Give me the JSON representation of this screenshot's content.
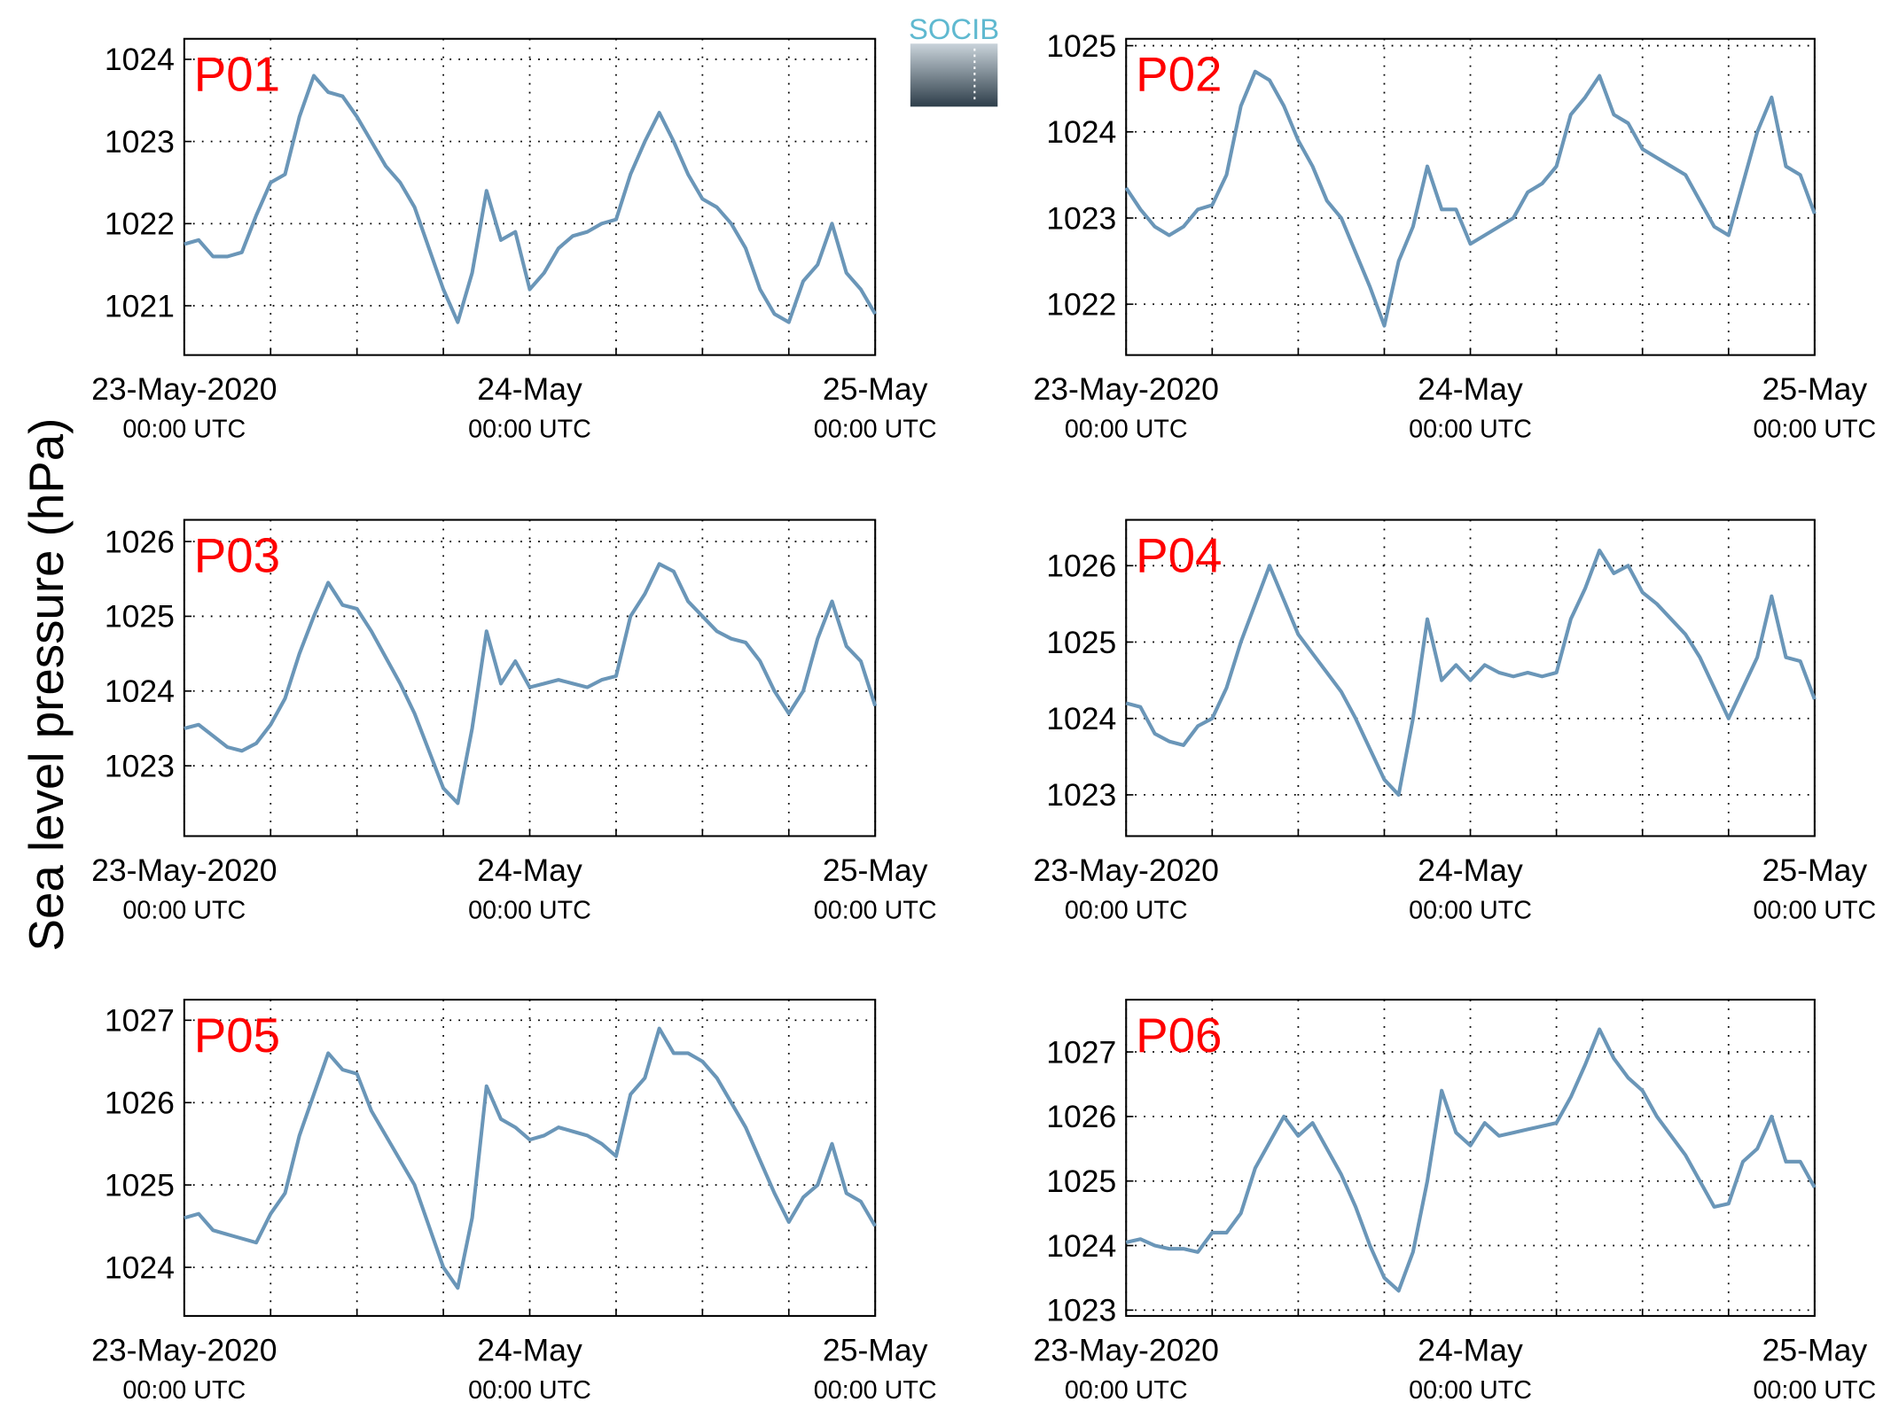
{
  "ylabel": "Sea level pressure (hPa)",
  "logo": "SOCIB",
  "chart_data": [
    {
      "type": "line",
      "title": "P01",
      "color": "#6a96b8",
      "grid": true,
      "x": [
        0,
        1,
        2,
        3,
        4,
        5,
        6,
        7,
        8,
        9,
        10,
        11,
        12,
        13,
        14,
        15,
        16,
        17,
        18,
        19,
        20,
        21,
        22,
        23,
        24,
        25,
        26,
        27,
        28,
        29,
        30,
        31,
        32,
        33,
        34,
        35,
        36,
        37,
        38,
        39,
        40,
        41,
        42,
        43,
        44,
        45,
        46,
        47,
        48
      ],
      "values": [
        1021.75,
        1021.8,
        1021.6,
        1021.6,
        1021.65,
        1022.1,
        1022.5,
        1022.6,
        1023.3,
        1023.8,
        1023.6,
        1023.55,
        1023.3,
        1023.0,
        1022.7,
        1022.5,
        1022.2,
        1021.7,
        1021.2,
        1020.8,
        1021.4,
        1022.4,
        1021.8,
        1021.9,
        1021.2,
        1021.4,
        1021.7,
        1021.85,
        1021.9,
        1022.0,
        1022.05,
        1022.6,
        1023.0,
        1023.35,
        1023.0,
        1022.6,
        1022.3,
        1022.2,
        1022.0,
        1021.7,
        1021.2,
        1020.9,
        1020.8,
        1021.3,
        1021.5,
        1022.0,
        1021.4,
        1021.2,
        1020.9
      ],
      "xlim": [
        0,
        48
      ],
      "xticks": [
        {
          "value": 0,
          "label": [
            "23-May-2020",
            "00:00 UTC"
          ]
        },
        {
          "value": 6,
          "label": null
        },
        {
          "value": 12,
          "label": null
        },
        {
          "value": 18,
          "label": null
        },
        {
          "value": 24,
          "label": [
            "24-May",
            "00:00 UTC"
          ]
        },
        {
          "value": 30,
          "label": null
        },
        {
          "value": 36,
          "label": null
        },
        {
          "value": 42,
          "label": null
        },
        {
          "value": 48,
          "label": [
            "25-May",
            "00:00 UTC"
          ]
        }
      ],
      "ylim": [
        1020.4,
        1024.25
      ],
      "yticks": [
        1021,
        1022,
        1023,
        1024
      ]
    },
    {
      "type": "line",
      "title": "P02",
      "color": "#6a96b8",
      "grid": true,
      "x": [
        0,
        1,
        2,
        3,
        4,
        5,
        6,
        7,
        8,
        9,
        10,
        11,
        12,
        13,
        14,
        15,
        16,
        17,
        18,
        19,
        20,
        21,
        22,
        23,
        24,
        25,
        26,
        27,
        28,
        29,
        30,
        31,
        32,
        33,
        34,
        35,
        36,
        37,
        38,
        39,
        40,
        41,
        42,
        43,
        44,
        45,
        46,
        47,
        48
      ],
      "values": [
        1023.35,
        1023.1,
        1022.9,
        1022.8,
        1022.9,
        1023.1,
        1023.15,
        1023.5,
        1024.3,
        1024.7,
        1024.6,
        1024.3,
        1023.9,
        1023.6,
        1023.2,
        1023.0,
        1022.6,
        1022.2,
        1021.75,
        1022.5,
        1022.9,
        1023.6,
        1023.1,
        1023.1,
        1022.7,
        1022.8,
        1022.9,
        1023.0,
        1023.3,
        1023.4,
        1023.6,
        1024.2,
        1024.4,
        1024.65,
        1024.2,
        1024.1,
        1023.8,
        1023.7,
        1023.6,
        1023.5,
        1023.2,
        1022.9,
        1022.8,
        1023.4,
        1024.0,
        1024.4,
        1023.6,
        1023.5,
        1023.05
      ],
      "xlim": [
        0,
        48
      ],
      "xticks": [
        {
          "value": 0,
          "label": [
            "23-May-2020",
            "00:00 UTC"
          ]
        },
        {
          "value": 6,
          "label": null
        },
        {
          "value": 12,
          "label": null
        },
        {
          "value": 18,
          "label": null
        },
        {
          "value": 24,
          "label": [
            "24-May",
            "00:00 UTC"
          ]
        },
        {
          "value": 30,
          "label": null
        },
        {
          "value": 36,
          "label": null
        },
        {
          "value": 42,
          "label": null
        },
        {
          "value": 48,
          "label": [
            "25-May",
            "00:00 UTC"
          ]
        }
      ],
      "ylim": [
        1021.41,
        1025.08
      ],
      "yticks": [
        1022,
        1023,
        1024,
        1025
      ]
    },
    {
      "type": "line",
      "title": "P03",
      "color": "#6a96b8",
      "grid": true,
      "x": [
        0,
        1,
        2,
        3,
        4,
        5,
        6,
        7,
        8,
        9,
        10,
        11,
        12,
        13,
        14,
        15,
        16,
        17,
        18,
        19,
        20,
        21,
        22,
        23,
        24,
        25,
        26,
        27,
        28,
        29,
        30,
        31,
        32,
        33,
        34,
        35,
        36,
        37,
        38,
        39,
        40,
        41,
        42,
        43,
        44,
        45,
        46,
        47,
        48
      ],
      "values": [
        1023.5,
        1023.55,
        1023.4,
        1023.25,
        1023.2,
        1023.3,
        1023.55,
        1023.9,
        1024.5,
        1025.0,
        1025.45,
        1025.15,
        1025.1,
        1024.8,
        1024.45,
        1024.1,
        1023.7,
        1023.2,
        1022.7,
        1022.5,
        1023.5,
        1024.8,
        1024.1,
        1024.4,
        1024.05,
        1024.1,
        1024.15,
        1024.1,
        1024.05,
        1024.15,
        1024.2,
        1025.0,
        1025.3,
        1025.7,
        1025.6,
        1025.2,
        1025.0,
        1024.8,
        1024.7,
        1024.65,
        1024.4,
        1024.0,
        1023.7,
        1024.0,
        1024.7,
        1025.2,
        1024.6,
        1024.4,
        1023.8
      ],
      "xlim": [
        0,
        48
      ],
      "xticks": [
        {
          "value": 0,
          "label": [
            "23-May-2020",
            "00:00 UTC"
          ]
        },
        {
          "value": 6,
          "label": null
        },
        {
          "value": 12,
          "label": null
        },
        {
          "value": 18,
          "label": null
        },
        {
          "value": 24,
          "label": [
            "24-May",
            "00:00 UTC"
          ]
        },
        {
          "value": 30,
          "label": null
        },
        {
          "value": 36,
          "label": null
        },
        {
          "value": 42,
          "label": null
        },
        {
          "value": 48,
          "label": [
            "25-May",
            "00:00 UTC"
          ]
        }
      ],
      "ylim": [
        1022.06,
        1026.29
      ],
      "yticks": [
        1023,
        1024,
        1025,
        1026
      ]
    },
    {
      "type": "line",
      "title": "P04",
      "color": "#6a96b8",
      "grid": true,
      "x": [
        0,
        1,
        2,
        3,
        4,
        5,
        6,
        7,
        8,
        9,
        10,
        11,
        12,
        13,
        14,
        15,
        16,
        17,
        18,
        19,
        20,
        21,
        22,
        23,
        24,
        25,
        26,
        27,
        28,
        29,
        30,
        31,
        32,
        33,
        34,
        35,
        36,
        37,
        38,
        39,
        40,
        41,
        42,
        43,
        44,
        45,
        46,
        47,
        48
      ],
      "values": [
        1024.2,
        1024.15,
        1023.8,
        1023.7,
        1023.65,
        1023.9,
        1024.0,
        1024.4,
        1025.0,
        1025.5,
        1026.0,
        1025.55,
        1025.1,
        1024.85,
        1024.6,
        1024.35,
        1024.0,
        1023.6,
        1023.2,
        1023.0,
        1024.0,
        1025.3,
        1024.5,
        1024.7,
        1024.5,
        1024.7,
        1024.6,
        1024.55,
        1024.6,
        1024.55,
        1024.6,
        1025.3,
        1025.7,
        1026.2,
        1025.9,
        1026.0,
        1025.65,
        1025.5,
        1025.3,
        1025.1,
        1024.8,
        1024.4,
        1024.0,
        1024.4,
        1024.8,
        1025.6,
        1024.8,
        1024.75,
        1024.25
      ],
      "xlim": [
        0,
        48
      ],
      "xticks": [
        {
          "value": 0,
          "label": [
            "23-May-2020",
            "00:00 UTC"
          ]
        },
        {
          "value": 6,
          "label": null
        },
        {
          "value": 12,
          "label": null
        },
        {
          "value": 18,
          "label": null
        },
        {
          "value": 24,
          "label": [
            "24-May",
            "00:00 UTC"
          ]
        },
        {
          "value": 30,
          "label": null
        },
        {
          "value": 36,
          "label": null
        },
        {
          "value": 42,
          "label": null
        },
        {
          "value": 48,
          "label": [
            "25-May",
            "00:00 UTC"
          ]
        }
      ],
      "ylim": [
        1022.46,
        1026.6
      ],
      "yticks": [
        1023,
        1024,
        1025,
        1026
      ]
    },
    {
      "type": "line",
      "title": "P05",
      "color": "#6a96b8",
      "grid": true,
      "x": [
        0,
        1,
        2,
        3,
        4,
        5,
        6,
        7,
        8,
        9,
        10,
        11,
        12,
        13,
        14,
        15,
        16,
        17,
        18,
        19,
        20,
        21,
        22,
        23,
        24,
        25,
        26,
        27,
        28,
        29,
        30,
        31,
        32,
        33,
        34,
        35,
        36,
        37,
        38,
        39,
        40,
        41,
        42,
        43,
        44,
        45,
        46,
        47,
        48
      ],
      "values": [
        1024.6,
        1024.65,
        1024.45,
        1024.4,
        1024.35,
        1024.3,
        1024.65,
        1024.9,
        1025.6,
        1026.1,
        1026.6,
        1026.4,
        1026.35,
        1025.9,
        1025.6,
        1025.3,
        1025.0,
        1024.5,
        1024.0,
        1023.75,
        1024.6,
        1026.2,
        1025.8,
        1025.7,
        1025.55,
        1025.6,
        1025.7,
        1025.65,
        1025.6,
        1025.5,
        1025.35,
        1026.1,
        1026.3,
        1026.9,
        1026.6,
        1026.6,
        1026.5,
        1026.3,
        1026.0,
        1025.7,
        1025.3,
        1024.9,
        1024.55,
        1024.85,
        1025.0,
        1025.5,
        1024.9,
        1024.8,
        1024.5
      ],
      "xlim": [
        0,
        48
      ],
      "xticks": [
        {
          "value": 0,
          "label": [
            "23-May-2020",
            "00:00 UTC"
          ]
        },
        {
          "value": 6,
          "label": null
        },
        {
          "value": 12,
          "label": null
        },
        {
          "value": 18,
          "label": null
        },
        {
          "value": 24,
          "label": [
            "24-May",
            "00:00 UTC"
          ]
        },
        {
          "value": 30,
          "label": null
        },
        {
          "value": 36,
          "label": null
        },
        {
          "value": 42,
          "label": null
        },
        {
          "value": 48,
          "label": [
            "25-May",
            "00:00 UTC"
          ]
        }
      ],
      "ylim": [
        1023.41,
        1027.25
      ],
      "yticks": [
        1024,
        1025,
        1026,
        1027
      ]
    },
    {
      "type": "line",
      "title": "P06",
      "color": "#6a96b8",
      "grid": true,
      "x": [
        0,
        1,
        2,
        3,
        4,
        5,
        6,
        7,
        8,
        9,
        10,
        11,
        12,
        13,
        14,
        15,
        16,
        17,
        18,
        19,
        20,
        21,
        22,
        23,
        24,
        25,
        26,
        27,
        28,
        29,
        30,
        31,
        32,
        33,
        34,
        35,
        36,
        37,
        38,
        39,
        40,
        41,
        42,
        43,
        44,
        45,
        46,
        47,
        48
      ],
      "values": [
        1024.05,
        1024.1,
        1024.0,
        1023.95,
        1023.95,
        1023.9,
        1024.2,
        1024.2,
        1024.5,
        1025.2,
        1025.6,
        1026.0,
        1025.7,
        1025.9,
        1025.5,
        1025.1,
        1024.6,
        1024.0,
        1023.5,
        1023.3,
        1023.9,
        1025.0,
        1026.4,
        1025.75,
        1025.55,
        1025.9,
        1025.7,
        1025.75,
        1025.8,
        1025.85,
        1025.9,
        1026.3,
        1026.8,
        1027.35,
        1026.9,
        1026.6,
        1026.4,
        1026.0,
        1025.7,
        1025.4,
        1025.0,
        1024.6,
        1024.65,
        1025.3,
        1025.5,
        1026.0,
        1025.3,
        1025.3,
        1024.9
      ],
      "xlim": [
        0,
        48
      ],
      "xticks": [
        {
          "value": 0,
          "label": [
            "23-May-2020",
            "00:00 UTC"
          ]
        },
        {
          "value": 6,
          "label": null
        },
        {
          "value": 12,
          "label": null
        },
        {
          "value": 18,
          "label": null
        },
        {
          "value": 24,
          "label": [
            "24-May",
            "00:00 UTC"
          ]
        },
        {
          "value": 30,
          "label": null
        },
        {
          "value": 36,
          "label": null
        },
        {
          "value": 42,
          "label": null
        },
        {
          "value": 48,
          "label": [
            "25-May",
            "00:00 UTC"
          ]
        }
      ],
      "ylim": [
        1022.91,
        1027.81
      ],
      "yticks": [
        1023,
        1024,
        1025,
        1026,
        1027
      ]
    }
  ]
}
